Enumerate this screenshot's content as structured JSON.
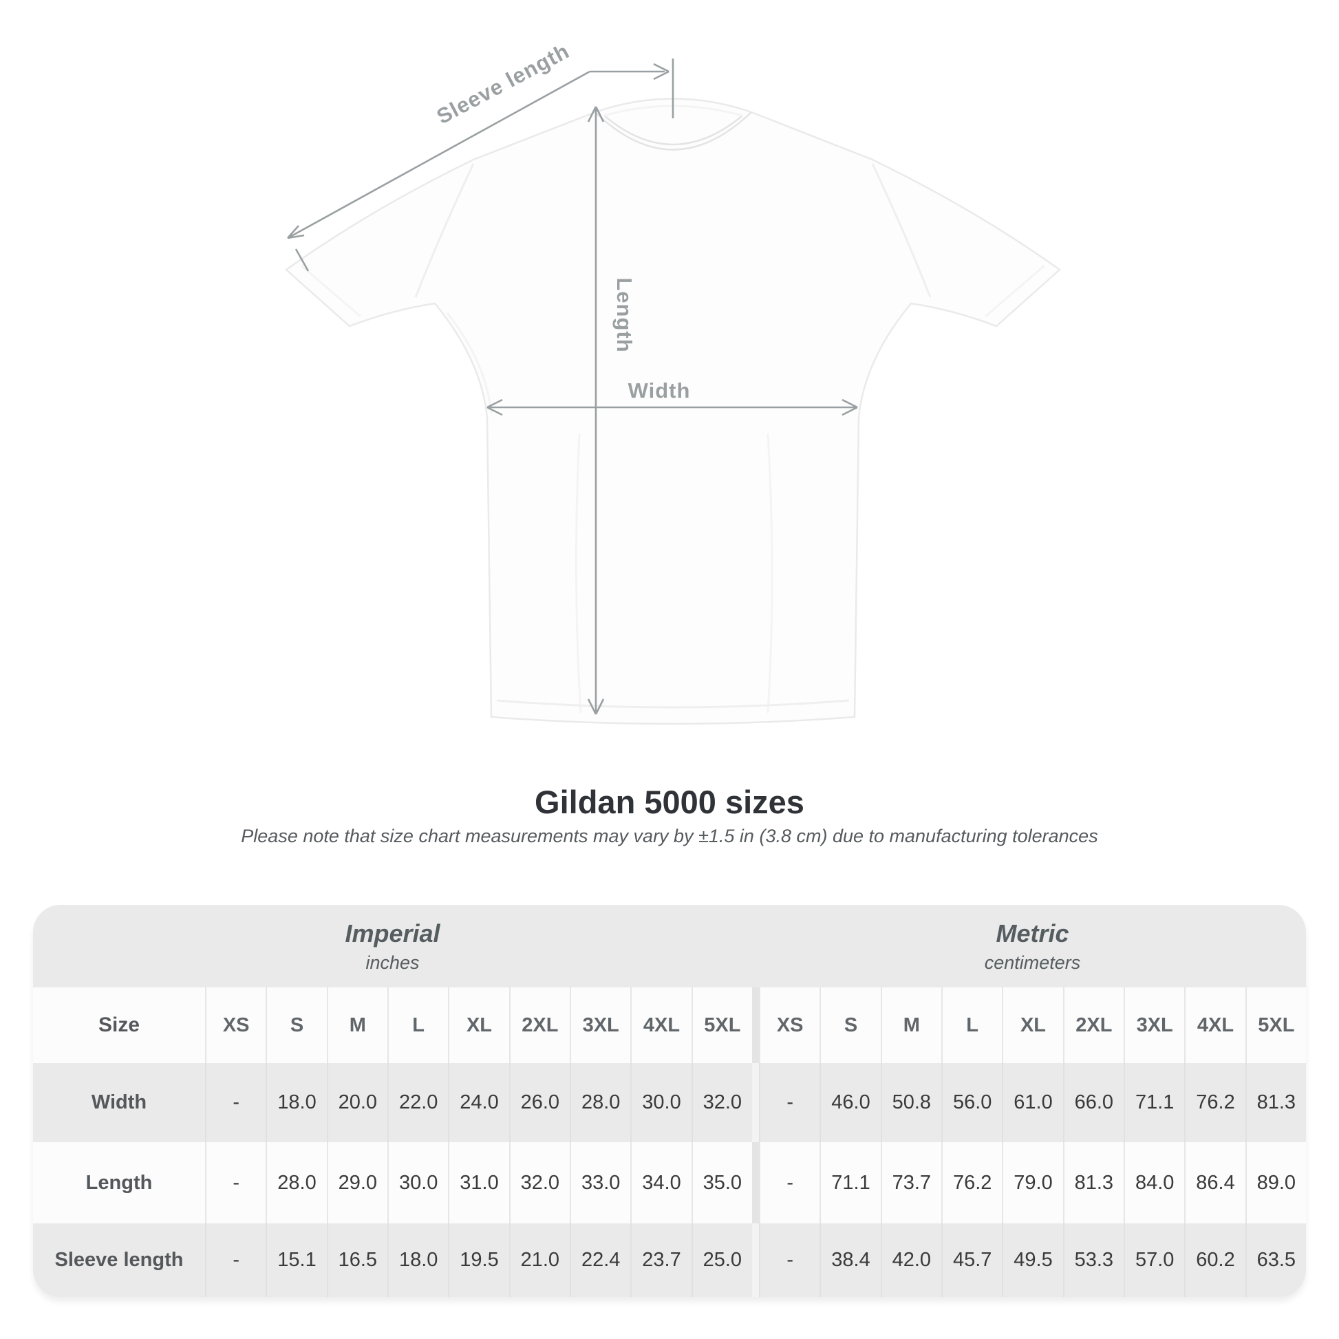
{
  "title": "Gildan 5000 sizes",
  "subtitle": "Please note that size chart measurements may vary by ±1.5 in (3.8 cm) due to manufacturing tolerances",
  "diagram": {
    "labels": {
      "sleeve_length": "Sleeve length",
      "length": "Length",
      "width": "Width"
    },
    "annotation_color": "#9aa0a2"
  },
  "chart_data": {
    "type": "table",
    "title": "Gildan 5000 sizes",
    "note": "Please note that size chart measurements may vary by ±1.5 in (3.8 cm) due to manufacturing tolerances",
    "groups": [
      {
        "label": "Imperial",
        "unit": "inches"
      },
      {
        "label": "Metric",
        "unit": "centimeters"
      }
    ],
    "size_header": "Size",
    "sizes": [
      "XS",
      "S",
      "M",
      "L",
      "XL",
      "2XL",
      "3XL",
      "4XL",
      "5XL"
    ],
    "rows": [
      {
        "label": "Width",
        "imperial": [
          "-",
          "18.0",
          "20.0",
          "22.0",
          "24.0",
          "26.0",
          "28.0",
          "30.0",
          "32.0"
        ],
        "metric": [
          "-",
          "46.0",
          "50.8",
          "56.0",
          "61.0",
          "66.0",
          "71.1",
          "76.2",
          "81.3"
        ]
      },
      {
        "label": "Length",
        "imperial": [
          "-",
          "28.0",
          "29.0",
          "30.0",
          "31.0",
          "32.0",
          "33.0",
          "34.0",
          "35.0"
        ],
        "metric": [
          "-",
          "71.1",
          "73.7",
          "76.2",
          "79.0",
          "81.3",
          "84.0",
          "86.4",
          "89.0"
        ]
      },
      {
        "label": "Sleeve length",
        "imperial": [
          "-",
          "15.1",
          "16.5",
          "18.0",
          "19.5",
          "21.0",
          "22.4",
          "23.7",
          "25.0"
        ],
        "metric": [
          "-",
          "38.4",
          "42.0",
          "45.7",
          "49.5",
          "53.3",
          "57.0",
          "60.2",
          "63.5"
        ]
      }
    ]
  }
}
